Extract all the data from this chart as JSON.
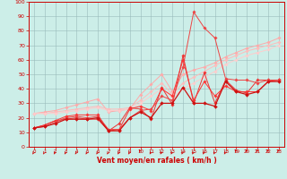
{
  "x": [
    0,
    1,
    2,
    3,
    4,
    5,
    6,
    7,
    8,
    9,
    10,
    11,
    12,
    13,
    14,
    15,
    16,
    17,
    18,
    19,
    20,
    21,
    22,
    23
  ],
  "lines": [
    {
      "color": "#ffaaaa",
      "linewidth": 0.7,
      "markersize": 1.8,
      "y": [
        23,
        24,
        25,
        27,
        29,
        31,
        33,
        24,
        25,
        26,
        36,
        43,
        50,
        38,
        50,
        53,
        55,
        58,
        62,
        65,
        68,
        70,
        72,
        75
      ]
    },
    {
      "color": "#ffbbbb",
      "linewidth": 0.7,
      "markersize": 1.8,
      "y": [
        23,
        23,
        24,
        25,
        26,
        27,
        28,
        26,
        26,
        27,
        32,
        38,
        44,
        36,
        44,
        48,
        52,
        56,
        60,
        63,
        66,
        68,
        70,
        72
      ]
    },
    {
      "color": "#ffcccc",
      "linewidth": 0.7,
      "markersize": 1.8,
      "y": [
        23,
        23,
        23,
        24,
        25,
        26,
        27,
        25,
        25,
        26,
        30,
        35,
        40,
        34,
        40,
        44,
        48,
        52,
        57,
        60,
        63,
        65,
        67,
        70
      ]
    },
    {
      "color": "#ff3333",
      "linewidth": 0.7,
      "markersize": 1.8,
      "y": [
        13,
        15,
        18,
        21,
        22,
        22,
        22,
        11,
        12,
        26,
        28,
        25,
        40,
        35,
        60,
        32,
        45,
        35,
        42,
        38,
        38,
        38,
        45,
        46
      ]
    },
    {
      "color": "#ee3333",
      "linewidth": 0.7,
      "markersize": 1.8,
      "y": [
        13,
        15,
        18,
        19,
        20,
        19,
        19,
        11,
        16,
        27,
        26,
        19,
        41,
        29,
        63,
        30,
        51,
        30,
        46,
        39,
        37,
        46,
        46,
        46
      ]
    },
    {
      "color": "#ee4444",
      "linewidth": 0.7,
      "markersize": 1.8,
      "y": [
        13,
        14,
        17,
        20,
        21,
        20,
        21,
        12,
        12,
        20,
        25,
        26,
        35,
        32,
        55,
        93,
        82,
        75,
        47,
        46,
        46,
        44,
        46,
        46
      ]
    },
    {
      "color": "#cc1111",
      "linewidth": 0.9,
      "markersize": 2.0,
      "y": [
        13,
        14,
        16,
        19,
        19,
        19,
        20,
        11,
        11,
        20,
        24,
        20,
        30,
        30,
        41,
        30,
        30,
        28,
        45,
        38,
        36,
        38,
        45,
        45
      ]
    }
  ],
  "xlabel": "Vent moyen/en rafales ( km/h )",
  "xlim": [
    -0.5,
    23.5
  ],
  "ylim": [
    0,
    100
  ],
  "yticks": [
    0,
    10,
    20,
    30,
    40,
    50,
    60,
    70,
    80,
    90,
    100
  ],
  "xticks": [
    0,
    1,
    2,
    3,
    4,
    5,
    6,
    7,
    8,
    9,
    10,
    11,
    12,
    13,
    14,
    15,
    16,
    17,
    18,
    19,
    20,
    21,
    22,
    23
  ],
  "background_color": "#cceee8",
  "grid_color": "#99bbbb",
  "xlabel_color": "#cc0000",
  "tick_color": "#cc0000",
  "arrow_angles_deg": [
    225,
    225,
    225,
    225,
    225,
    225,
    225,
    225,
    225,
    225,
    135,
    225,
    225,
    225,
    225,
    225,
    225,
    225,
    225,
    135,
    135,
    135,
    135,
    135
  ]
}
